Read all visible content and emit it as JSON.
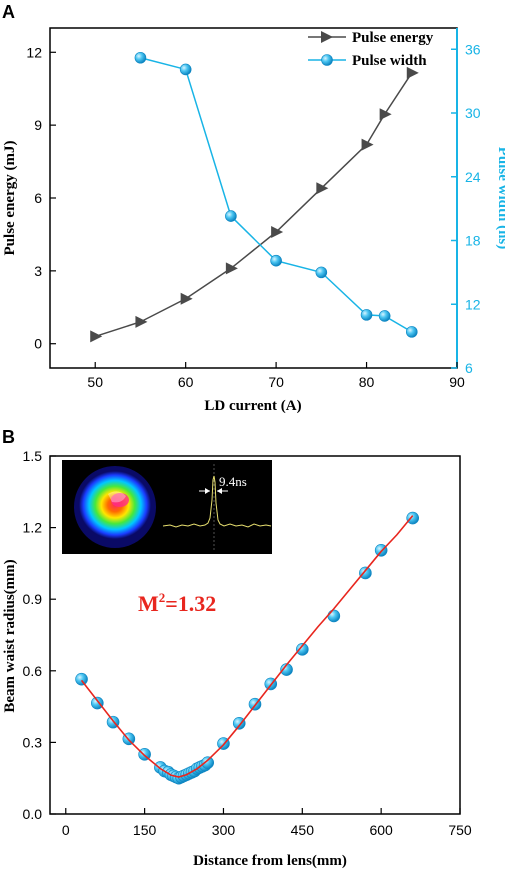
{
  "chart_data": [
    {
      "panel_label": "A",
      "type": "line",
      "xlabel": "LD current (A)",
      "ylabel": "Pulse energy (mJ)",
      "ylabel_right": "Pulse width (ns)",
      "xlim": [
        45,
        90
      ],
      "ylim": [
        -1,
        13
      ],
      "ylim_right": [
        6,
        38
      ],
      "xticks": [
        50,
        60,
        70,
        80,
        90
      ],
      "yticks": [
        0,
        3,
        6,
        9,
        12
      ],
      "yticks_right": [
        6,
        12,
        18,
        24,
        30,
        36
      ],
      "legend_position": "top-right",
      "series": [
        {
          "name": "Pulse energy",
          "axis": "left",
          "color": "#4a4a4a",
          "marker": "triangle-right",
          "x": [
            50,
            55,
            60,
            65,
            70,
            75,
            80,
            82,
            85
          ],
          "y": [
            0.3,
            0.9,
            1.85,
            3.1,
            4.6,
            6.4,
            8.2,
            9.45,
            11.15
          ]
        },
        {
          "name": "Pulse width",
          "axis": "right",
          "color": "#18b4e6",
          "marker": "sphere",
          "x": [
            55,
            60,
            65,
            70,
            75,
            80,
            82,
            85
          ],
          "y": [
            35.2,
            34.1,
            20.3,
            16.1,
            15.0,
            11.0,
            10.9,
            9.4
          ]
        }
      ]
    },
    {
      "panel_label": "B",
      "type": "scatter",
      "xlabel": "Distance from lens(mm)",
      "ylabel": "Beam waist radius(mm)",
      "xlim": [
        -30,
        750
      ],
      "ylim": [
        0.0,
        1.5
      ],
      "xticks": [
        0,
        150,
        300,
        450,
        600,
        750
      ],
      "yticks": [
        0.0,
        0.3,
        0.6,
        0.9,
        1.2,
        1.5
      ],
      "annotation_main": "M",
      "annotation_sup": "2",
      "annotation_rest": "=1.32",
      "inset_label": "9.4ns",
      "fit_color": "#e8261e",
      "marker_color": "#18b4e6",
      "points": {
        "x": [
          30,
          60,
          90,
          120,
          150,
          180,
          188,
          195,
          200,
          205,
          210,
          215,
          220,
          225,
          230,
          235,
          240,
          245,
          250,
          255,
          260,
          265,
          270,
          300,
          330,
          360,
          390,
          420,
          450,
          510,
          570,
          600,
          660
        ],
        "y": [
          0.565,
          0.465,
          0.385,
          0.315,
          0.25,
          0.195,
          0.18,
          0.175,
          0.165,
          0.16,
          0.155,
          0.15,
          0.155,
          0.16,
          0.165,
          0.17,
          0.175,
          0.18,
          0.19,
          0.195,
          0.2,
          0.205,
          0.215,
          0.295,
          0.38,
          0.46,
          0.545,
          0.605,
          0.69,
          0.83,
          1.01,
          1.105,
          1.24
        ]
      },
      "fit": {
        "x": [
          30,
          60,
          90,
          120,
          150,
          180,
          200,
          215,
          230,
          250,
          270,
          300,
          330,
          360,
          390,
          420,
          450,
          480,
          510,
          540,
          570,
          600,
          630,
          660
        ],
        "y": [
          0.56,
          0.475,
          0.39,
          0.31,
          0.245,
          0.19,
          0.163,
          0.155,
          0.165,
          0.19,
          0.225,
          0.29,
          0.37,
          0.455,
          0.54,
          0.625,
          0.705,
          0.785,
          0.86,
          0.94,
          1.02,
          1.1,
          1.17,
          1.25
        ]
      }
    }
  ]
}
